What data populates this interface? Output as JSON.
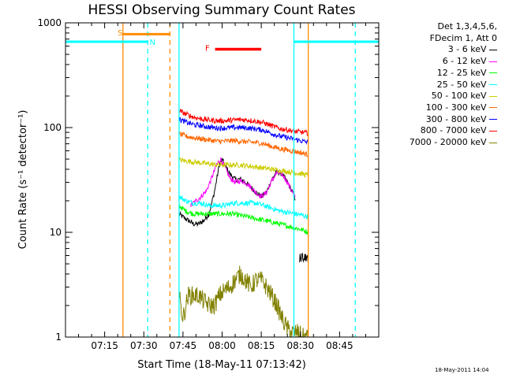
{
  "chart_data": {
    "type": "line",
    "title": "HESSI Observing Summary Count Rates",
    "xlabel": "Start Time (18-May-11 07:13:42)",
    "ylabel": "Count Rate (s⁻¹ detector⁻¹)",
    "x_unit": "minutes since 07:00 UT",
    "xlim": [
      0,
      120
    ],
    "ylim": [
      1,
      1000
    ],
    "yscale": "log",
    "x_ticks": [
      {
        "value": 15,
        "label": "07:15"
      },
      {
        "value": 30,
        "label": "07:30"
      },
      {
        "value": 45,
        "label": "07:45"
      },
      {
        "value": 60,
        "label": "08:00"
      },
      {
        "value": 75,
        "label": "08:15"
      },
      {
        "value": 90,
        "label": "08:30"
      },
      {
        "value": 105,
        "label": "08:45"
      }
    ],
    "y_ticks": [
      {
        "value": 1,
        "label": "1"
      },
      {
        "value": 10,
        "label": "10"
      },
      {
        "value": 100,
        "label": "100"
      },
      {
        "value": 1000,
        "label": "1000"
      }
    ],
    "legend_header": [
      "Det 1,3,4,5,6,",
      "FDecim 1, Att 0"
    ],
    "legend_placement": "right, outside plot",
    "series": [
      {
        "name": "3 - 6 keV",
        "color": "#000000",
        "x": [
          43.5,
          45,
          47,
          49,
          51,
          53,
          55,
          57,
          59,
          60,
          61,
          63,
          65,
          67,
          69,
          71,
          73,
          75,
          77,
          79,
          81,
          83,
          85,
          87,
          88
        ],
        "y": [
          15,
          14,
          13,
          12,
          12,
          13,
          15,
          24,
          45,
          50,
          44,
          36,
          32,
          32,
          30,
          27,
          24,
          22,
          24,
          32,
          38,
          36,
          30,
          24,
          21
        ]
      },
      {
        "name": "6 - 12 keV",
        "color": "#ff00ff",
        "x": [
          48,
          50,
          52,
          54,
          56,
          58,
          59.5,
          61,
          63,
          65,
          67,
          69,
          71,
          73,
          75,
          77,
          79,
          81,
          83,
          85,
          87,
          88
        ],
        "y": [
          18,
          20,
          22,
          25,
          33,
          45,
          50,
          42,
          33,
          30,
          31,
          30,
          27,
          24,
          22,
          24,
          31,
          37,
          36,
          30,
          24,
          21
        ]
      },
      {
        "name": "12 - 25 keV",
        "color": "#00ff00",
        "x": [
          43.5,
          46,
          49,
          52,
          55,
          58,
          61,
          64,
          67,
          70,
          73,
          76,
          79,
          82,
          85,
          88,
          91,
          93
        ],
        "y": [
          18,
          16,
          15,
          15,
          15,
          15,
          15,
          15,
          14.5,
          14,
          13.5,
          13,
          12.5,
          12,
          11.5,
          11,
          10.5,
          10
        ]
      },
      {
        "name": "25 - 50 keV",
        "color": "#00ffff",
        "x": [
          43.5,
          46,
          49,
          52,
          55,
          58,
          61,
          64,
          67,
          70,
          73,
          76,
          79,
          82,
          85,
          88,
          91,
          93
        ],
        "y": [
          22,
          20,
          19,
          19,
          18,
          18,
          18,
          19,
          19,
          19,
          19,
          18,
          17,
          16,
          15.5,
          15,
          14.5,
          14
        ]
      },
      {
        "name": "50 - 100 keV",
        "color": "#cccc00",
        "x": [
          43.5,
          46,
          49,
          52,
          55,
          58,
          61,
          64,
          67,
          70,
          73,
          76,
          79,
          82,
          85,
          88,
          91,
          93
        ],
        "y": [
          49,
          48,
          47,
          46,
          45,
          44,
          44,
          44,
          44,
          43,
          42,
          41,
          40,
          39,
          38,
          37,
          36,
          35
        ]
      },
      {
        "name": "100 - 300 keV",
        "color": "#ff6600",
        "x": [
          43.5,
          46,
          49,
          52,
          55,
          58,
          61,
          64,
          67,
          70,
          73,
          76,
          79,
          82,
          85,
          88,
          91,
          93
        ],
        "y": [
          87,
          83,
          80,
          78,
          76,
          74,
          74,
          75,
          74,
          73,
          72,
          70,
          66,
          63,
          61,
          59,
          57,
          55
        ]
      },
      {
        "name": "300 - 800 keV",
        "color": "#0000ff",
        "x": [
          43.5,
          46,
          49,
          52,
          55,
          58,
          61,
          64,
          67,
          70,
          73,
          76,
          79,
          82,
          85,
          88,
          91,
          93
        ],
        "y": [
          120,
          113,
          107,
          104,
          101,
          99,
          99,
          100,
          100,
          99,
          97,
          94,
          88,
          83,
          80,
          77,
          74,
          72
        ]
      },
      {
        "name": "800 - 7000 keV",
        "color": "#ff0000",
        "x": [
          43.5,
          46,
          49,
          52,
          55,
          58,
          61,
          64,
          67,
          70,
          73,
          76,
          79,
          82,
          85,
          88,
          91,
          93
        ],
        "y": [
          145,
          135,
          126,
          121,
          118,
          116,
          116,
          118,
          119,
          118,
          115,
          111,
          104,
          98,
          95,
          92,
          90,
          88
        ]
      },
      {
        "name": "7000 - 20000 keV",
        "color": "#808000",
        "x": [
          43.5,
          45,
          47,
          49,
          51,
          53,
          55,
          57,
          59,
          61,
          63,
          65,
          67,
          69,
          71,
          73,
          75,
          77,
          79,
          81,
          83,
          85,
          87,
          89,
          91,
          93
        ],
        "y": [
          2.5,
          1.5,
          2.5,
          2.5,
          2.5,
          2.2,
          2.0,
          2.0,
          2.5,
          2.8,
          3.0,
          3.5,
          4.0,
          3.5,
          3.0,
          3.5,
          3.5,
          3.0,
          2.5,
          2.0,
          1.5,
          1.2,
          1.1,
          1.1,
          1.0,
          1.0
        ]
      }
    ],
    "high_sideband_segments": [
      {
        "name": "3 - 6 keV",
        "color": "#000000",
        "x": [
          89.5,
          90.5,
          91.5,
          92.5,
          93
        ],
        "y": [
          5.5,
          5.8,
          5.5,
          6.0,
          5.0
        ]
      }
    ],
    "vertical_markers": [
      {
        "x": 22,
        "color": "#ff8c00",
        "style": "solid"
      },
      {
        "x": 40,
        "color": "#ff8c00",
        "style": "dashed"
      },
      {
        "x": 31.5,
        "color": "#00ffff",
        "style": "dashed"
      },
      {
        "x": 43.5,
        "color": "#00ffff",
        "style": "solid"
      },
      {
        "x": 87.5,
        "color": "#00ffff",
        "style": "solid"
      },
      {
        "x": 93,
        "color": "#ff8c00",
        "style": "solid"
      },
      {
        "x": 111,
        "color": "#00ffff",
        "style": "dashed"
      }
    ],
    "interval_bars": [
      {
        "label": "S",
        "color": "#ff8c00",
        "x": [
          22,
          40
        ],
        "y": 780
      },
      {
        "label": "N",
        "color": "#00ffff",
        "x": [
          0,
          31.5
        ],
        "y": 660
      },
      {
        "label": "N",
        "color": "#00ffff",
        "x": [
          87.5,
          120
        ],
        "y": 660
      },
      {
        "label": "F",
        "color": "#ff0000",
        "x": [
          57.3,
          75
        ],
        "y": 560
      }
    ],
    "interval_labels": [
      {
        "label": "S",
        "color": "#ff8c00",
        "x": 20,
        "y": 810
      },
      {
        "label": "N",
        "color": "#00ffff",
        "x": 32.2,
        "y": 660
      },
      {
        "label": "F",
        "color": "#ff0000",
        "x": 53.5,
        "y": 580
      }
    ]
  },
  "footer": {
    "date_stamp": "18-May-2011 14:04"
  }
}
